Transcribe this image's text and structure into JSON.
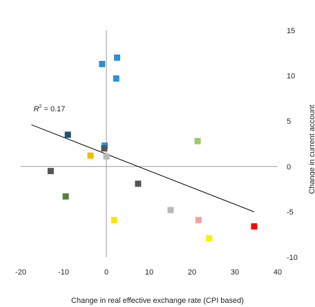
{
  "chart_data": {
    "type": "scatter",
    "title": "",
    "xlabel": "Change in real effective exchange rate (CPI based)",
    "ylabel": "Change in current account",
    "xlim": [
      -20,
      40
    ],
    "ylim": [
      -10,
      15
    ],
    "x_ticks": [
      -20,
      -10,
      0,
      10,
      20,
      30,
      40
    ],
    "y_ticks": [
      15,
      10,
      5,
      0,
      -5,
      -10
    ],
    "grid": false,
    "legend": "none",
    "points": [
      {
        "x": 2.5,
        "y": 12.0,
        "color": "#2E8FD6"
      },
      {
        "x": -1.0,
        "y": 11.3,
        "color": "#2E8FD6"
      },
      {
        "x": 2.3,
        "y": 9.7,
        "color": "#2E8FD6"
      },
      {
        "x": -9.0,
        "y": 3.5,
        "color": "#1F4E79"
      },
      {
        "x": -0.4,
        "y": 2.3,
        "color": "#2E8FD6"
      },
      {
        "x": -0.5,
        "y": 2.0,
        "color": "#555555"
      },
      {
        "x": -3.7,
        "y": 1.2,
        "color": "#F5B800"
      },
      {
        "x": 0.0,
        "y": 1.1,
        "color": "#BBBBBB"
      },
      {
        "x": 21.3,
        "y": 2.8,
        "color": "#9CC96B"
      },
      {
        "x": -13.0,
        "y": -0.5,
        "color": "#555555"
      },
      {
        "x": 7.4,
        "y": -1.9,
        "color": "#555555"
      },
      {
        "x": -9.5,
        "y": -3.3,
        "color": "#548235"
      },
      {
        "x": 15.0,
        "y": -4.8,
        "color": "#B8B8B8"
      },
      {
        "x": 1.8,
        "y": -5.9,
        "color": "#FFE600"
      },
      {
        "x": 21.5,
        "y": -5.9,
        "color": "#F4A0A0"
      },
      {
        "x": 34.5,
        "y": -6.6,
        "color": "#FF0000"
      },
      {
        "x": 24.0,
        "y": -7.9,
        "color": "#FFF200"
      }
    ],
    "trendline": {
      "x": [
        -17.5,
        34.5
      ],
      "y": [
        4.6,
        -5.0
      ],
      "color": "#000000"
    },
    "annotation": {
      "prefix": "R",
      "superscript": "2",
      "value": " = 0.17",
      "anchor_x": -17.0,
      "anchor_y": 6.1
    }
  }
}
